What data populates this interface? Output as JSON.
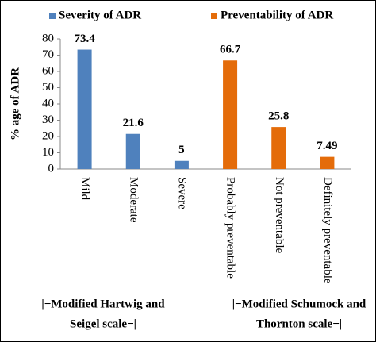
{
  "chart_data": {
    "type": "bar",
    "y_label": "% age of ADR",
    "categories": [
      "Mild",
      "Moderate",
      "Severe",
      "Probably preventable",
      "Not preventable",
      "Definitely preventable"
    ],
    "series": [
      {
        "name": "Severity of ADR",
        "color": "#4f81bd",
        "values": [
          73.4,
          21.6,
          5,
          null,
          null,
          null
        ]
      },
      {
        "name": "Preventability of ADR",
        "color": "#e46c0a",
        "values": [
          null,
          null,
          null,
          66.7,
          25.8,
          7.49
        ]
      }
    ],
    "ylim": [
      0,
      80
    ],
    "yticks": [
      0,
      10,
      20,
      30,
      40,
      50,
      60,
      70,
      80
    ],
    "grid": false,
    "legend": "top",
    "group_labels": [
      [
        "|−Modified Hartwig and",
        "Seigel scale−|"
      ],
      [
        "|−Modified Schumock and",
        "Thornton scale−|"
      ]
    ]
  }
}
